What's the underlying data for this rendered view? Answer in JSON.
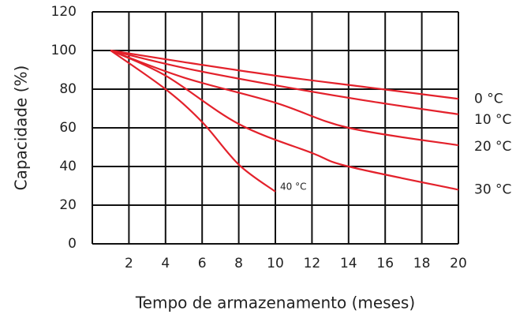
{
  "chart_data": {
    "type": "line",
    "xlabel": "Tempo de armazenamento (meses)",
    "ylabel": "Capacidade (%)",
    "xlim": [
      0,
      20
    ],
    "xticks": [
      2,
      4,
      6,
      8,
      10,
      12,
      14,
      16,
      18,
      20
    ],
    "ylim": [
      0,
      120
    ],
    "yticks": [
      0,
      20,
      40,
      60,
      80,
      100,
      120
    ],
    "grid": true,
    "series": [
      {
        "name": "0 °C",
        "color": "#e3212b",
        "x": [
          1,
          5,
          10,
          15,
          20
        ],
        "values": [
          100,
          94,
          87,
          81,
          75
        ]
      },
      {
        "name": "10 °C",
        "color": "#e3212b",
        "x": [
          1,
          5,
          10,
          15,
          20
        ],
        "values": [
          100,
          91,
          82,
          74,
          67
        ]
      },
      {
        "name": "20 °C",
        "color": "#e3212b",
        "x": [
          1,
          5,
          10,
          14,
          20
        ],
        "values": [
          100,
          86,
          73,
          60,
          51
        ]
      },
      {
        "name": "30 °C",
        "color": "#e3212b",
        "x": [
          1,
          4,
          8,
          12,
          14,
          20
        ],
        "values": [
          100,
          87,
          62,
          47,
          40,
          28
        ]
      },
      {
        "name": "40 °C",
        "color": "#e3212b",
        "x": [
          1,
          4,
          6,
          8,
          10
        ],
        "values": [
          100,
          80,
          63,
          41,
          27
        ]
      }
    ]
  }
}
